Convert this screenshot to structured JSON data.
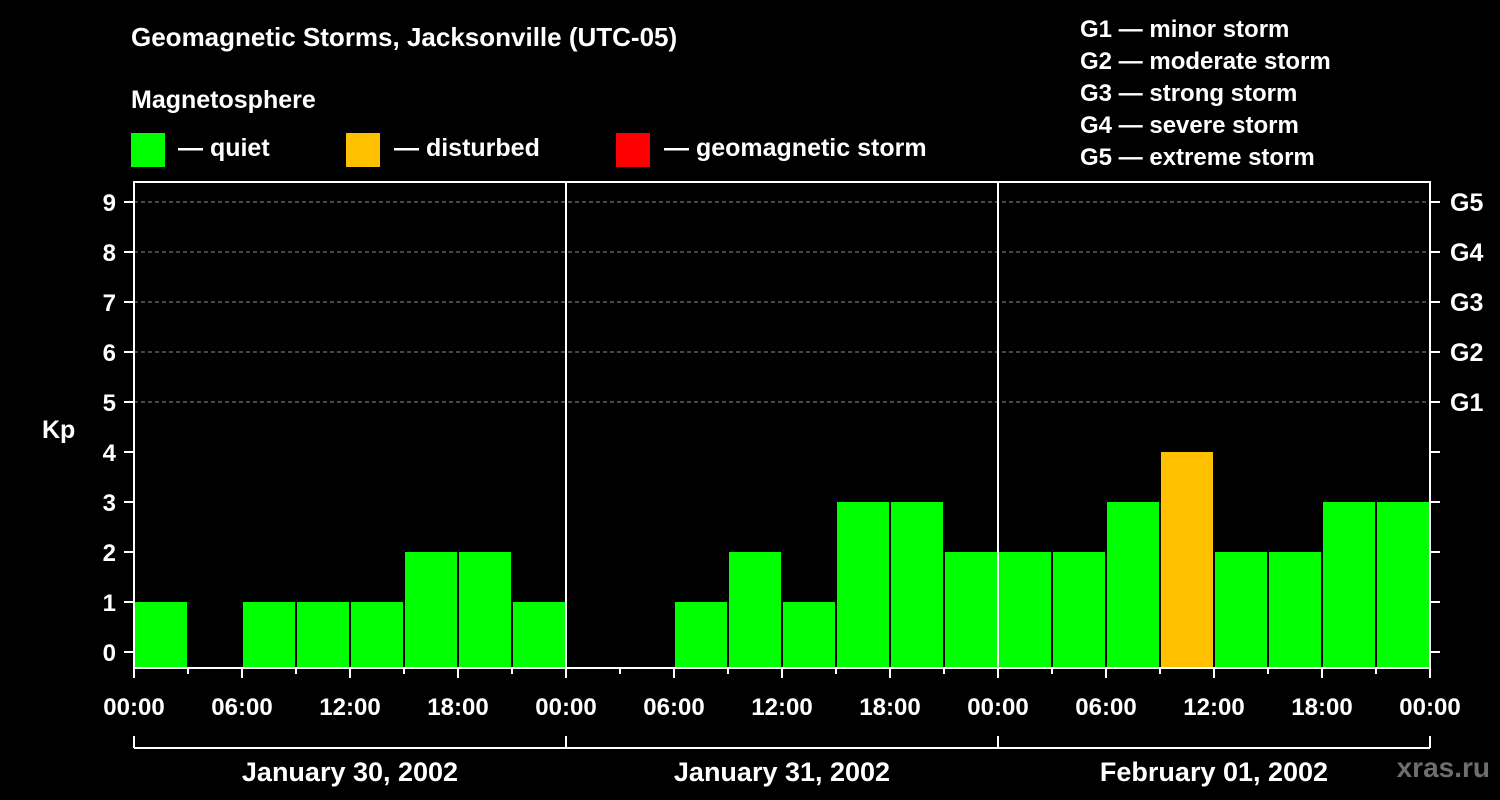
{
  "title": "Geomagnetic Storms, Jacksonville (UTC-05)",
  "legend": {
    "heading": "Magnetosphere",
    "items": [
      {
        "label": "— quiet",
        "color": "#00ff00"
      },
      {
        "label": "— disturbed",
        "color": "#ffc000"
      },
      {
        "label": "— geomagnetic storm",
        "color": "#ff0000"
      }
    ]
  },
  "storm_scale": [
    "G1 — minor storm",
    "G2 — moderate storm",
    "G3 — strong storm",
    "G4 — severe storm",
    "G5 — extreme storm"
  ],
  "watermark": "xras.ru",
  "chart_data": {
    "type": "bar",
    "ylabel": "Kp",
    "ylim": [
      0,
      9
    ],
    "yticks": [
      "0",
      "1",
      "2",
      "3",
      "4",
      "5",
      "6",
      "7",
      "8",
      "9"
    ],
    "right_axis_labels": [
      {
        "kp": 5,
        "label": "G1"
      },
      {
        "kp": 6,
        "label": "G2"
      },
      {
        "kp": 7,
        "label": "G3"
      },
      {
        "kp": 8,
        "label": "G4"
      },
      {
        "kp": 9,
        "label": "G5"
      }
    ],
    "xtick_labels": [
      "00:00",
      "06:00",
      "12:00",
      "18:00",
      "00:00",
      "06:00",
      "12:00",
      "18:00",
      "00:00",
      "06:00",
      "12:00",
      "18:00",
      "00:00"
    ],
    "days": [
      "January 30, 2002",
      "January 31, 2002",
      "February 01, 2002"
    ],
    "interval_hours": 3,
    "values": [
      [
        1,
        0,
        1,
        1,
        1,
        2,
        2,
        1
      ],
      [
        0,
        0,
        1,
        2,
        1,
        3,
        3,
        2
      ],
      [
        2,
        2,
        3,
        4,
        2,
        2,
        3,
        3
      ]
    ],
    "level_colors": {
      "quiet": "#00ff00",
      "disturbed": "#ffc000",
      "storm": "#ff0000"
    },
    "grid": "dashed horizontal lines at Kp 5–9"
  }
}
